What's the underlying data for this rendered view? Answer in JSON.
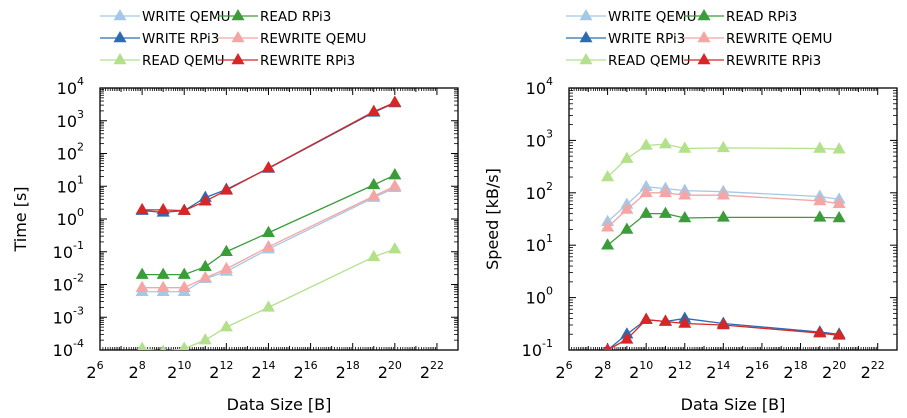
{
  "chart_data": [
    {
      "type": "line",
      "xlabel": "Data Size [B]",
      "ylabel": "Time [s]",
      "x_scale": "log2",
      "y_scale": "log10",
      "xlim": [
        64,
        8388608
      ],
      "ylim": [
        0.0001,
        10000
      ],
      "x_ticks": [
        {
          "base": "2",
          "exp": "6"
        },
        {
          "base": "2",
          "exp": "8"
        },
        {
          "base": "2",
          "exp": "10"
        },
        {
          "base": "2",
          "exp": "12"
        },
        {
          "base": "2",
          "exp": "14"
        },
        {
          "base": "2",
          "exp": "16"
        },
        {
          "base": "2",
          "exp": "18"
        },
        {
          "base": "2",
          "exp": "20"
        },
        {
          "base": "2",
          "exp": "22"
        }
      ],
      "y_ticks": [
        {
          "base": "10",
          "exp": "-4"
        },
        {
          "base": "10",
          "exp": "-3"
        },
        {
          "base": "10",
          "exp": "-2"
        },
        {
          "base": "10",
          "exp": "-1"
        },
        {
          "base": "10",
          "exp": "0"
        },
        {
          "base": "10",
          "exp": "1"
        },
        {
          "base": "10",
          "exp": "2"
        },
        {
          "base": "10",
          "exp": "3"
        },
        {
          "base": "10",
          "exp": "4"
        }
      ],
      "legend": "top, outside, 2 columns",
      "series": [
        {
          "name": "WRITE QEMU",
          "color": "#a6c8e6",
          "x": [
            256,
            512,
            1024,
            2048,
            4096,
            16384,
            524288,
            1048576
          ],
          "y": [
            0.006,
            0.006,
            0.006,
            0.015,
            0.025,
            0.12,
            4.5,
            9
          ]
        },
        {
          "name": "WRITE RPi3",
          "color": "#2d6bb0",
          "x": [
            256,
            512,
            1024,
            2048,
            4096,
            16384,
            524288,
            1048576
          ],
          "y": [
            1.8,
            1.6,
            1.8,
            4.5,
            8,
            35,
            1800,
            3500
          ]
        },
        {
          "name": "READ QEMU",
          "color": "#b3e08a",
          "x": [
            256,
            512,
            1024,
            2048,
            4096,
            16384,
            524288,
            1048576
          ],
          "y": [
            0.00011,
            9e-05,
            0.00011,
            0.0002,
            0.0005,
            0.002,
            0.07,
            0.12
          ]
        },
        {
          "name": "READ RPi3",
          "color": "#3a9d3a",
          "x": [
            256,
            512,
            1024,
            2048,
            4096,
            16384,
            524288,
            1048576
          ],
          "y": [
            0.02,
            0.02,
            0.02,
            0.035,
            0.1,
            0.38,
            11,
            22
          ]
        },
        {
          "name": "REWRITE QEMU",
          "color": "#f5a5a3",
          "x": [
            256,
            512,
            1024,
            2048,
            4096,
            16384,
            524288,
            1048576
          ],
          "y": [
            0.008,
            0.008,
            0.008,
            0.016,
            0.03,
            0.14,
            5,
            10
          ]
        },
        {
          "name": "REWRITE RPi3",
          "color": "#d82626",
          "x": [
            256,
            512,
            1024,
            2048,
            4096,
            16384,
            524288,
            1048576
          ],
          "y": [
            1.9,
            1.9,
            1.8,
            3.5,
            7.5,
            36,
            1900,
            3600
          ]
        }
      ]
    },
    {
      "type": "line",
      "xlabel": "Data Size [B]",
      "ylabel": "Speed [kB/s]",
      "x_scale": "log2",
      "y_scale": "log10",
      "xlim": [
        64,
        8388608
      ],
      "ylim": [
        0.1,
        10000
      ],
      "x_ticks": [
        {
          "base": "2",
          "exp": "6"
        },
        {
          "base": "2",
          "exp": "8"
        },
        {
          "base": "2",
          "exp": "10"
        },
        {
          "base": "2",
          "exp": "12"
        },
        {
          "base": "2",
          "exp": "14"
        },
        {
          "base": "2",
          "exp": "16"
        },
        {
          "base": "2",
          "exp": "18"
        },
        {
          "base": "2",
          "exp": "20"
        },
        {
          "base": "2",
          "exp": "22"
        }
      ],
      "y_ticks": [
        {
          "base": "10",
          "exp": "-1"
        },
        {
          "base": "10",
          "exp": "0"
        },
        {
          "base": "10",
          "exp": "1"
        },
        {
          "base": "10",
          "exp": "2"
        },
        {
          "base": "10",
          "exp": "3"
        },
        {
          "base": "10",
          "exp": "4"
        }
      ],
      "legend": "top, outside, 2 columns",
      "series": [
        {
          "name": "WRITE QEMU",
          "color": "#a6c8e6",
          "x": [
            256,
            512,
            1024,
            2048,
            4096,
            16384,
            524288,
            1048576
          ],
          "y": [
            28,
            60,
            130,
            120,
            110,
            105,
            85,
            75
          ]
        },
        {
          "name": "WRITE RPi3",
          "color": "#2d6bb0",
          "x": [
            256,
            512,
            1024,
            2048,
            4096,
            16384,
            524288,
            1048576
          ],
          "y": [
            0.1,
            0.2,
            0.38,
            0.35,
            0.4,
            0.32,
            0.22,
            0.2
          ]
        },
        {
          "name": "READ QEMU",
          "color": "#b3e08a",
          "x": [
            256,
            512,
            1024,
            2048,
            4096,
            16384,
            524288,
            1048576
          ],
          "y": [
            200,
            450,
            800,
            850,
            700,
            720,
            700,
            680
          ]
        },
        {
          "name": "READ RPi3",
          "color": "#3a9d3a",
          "x": [
            256,
            512,
            1024,
            2048,
            4096,
            16384,
            524288,
            1048576
          ],
          "y": [
            10,
            20,
            40,
            40,
            33,
            34,
            34,
            33
          ]
        },
        {
          "name": "REWRITE QEMU",
          "color": "#f5a5a3",
          "x": [
            256,
            512,
            1024,
            2048,
            4096,
            16384,
            524288,
            1048576
          ],
          "y": [
            22,
            48,
            100,
            100,
            90,
            90,
            70,
            62
          ]
        },
        {
          "name": "REWRITE RPi3",
          "color": "#d82626",
          "x": [
            256,
            512,
            1024,
            2048,
            4096,
            16384,
            524288,
            1048576
          ],
          "y": [
            0.1,
            0.16,
            0.38,
            0.35,
            0.32,
            0.3,
            0.21,
            0.19
          ]
        }
      ]
    }
  ]
}
